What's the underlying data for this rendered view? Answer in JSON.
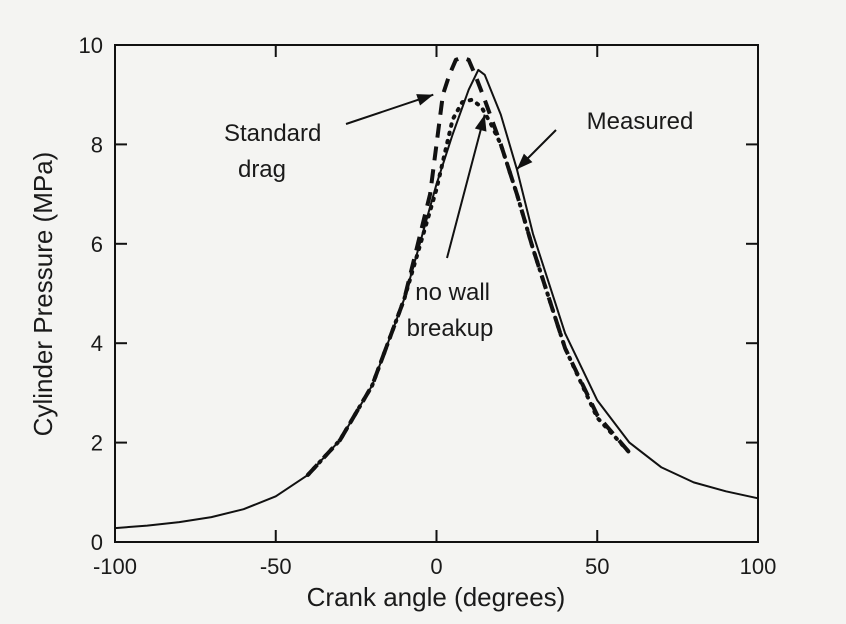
{
  "chart_data": {
    "type": "line",
    "xlabel": "Crank angle (degrees)",
    "ylabel": "Cylinder Pressure (MPa)",
    "xlim": [
      -100,
      100
    ],
    "ylim": [
      0,
      10
    ],
    "xticks": [
      -100,
      -50,
      0,
      50,
      100
    ],
    "yticks": [
      0,
      2,
      4,
      6,
      8,
      10
    ],
    "xtick_labels": [
      "-100",
      "-50",
      "0",
      "50",
      "100"
    ],
    "ytick_labels": [
      "0",
      "2",
      "4",
      "6",
      "8",
      "10"
    ],
    "grid": false,
    "series": [
      {
        "name": "Measured",
        "style": "solid",
        "x": [
          -100,
          -90,
          -80,
          -70,
          -60,
          -50,
          -40,
          -30,
          -20,
          -10,
          0,
          5,
          10,
          13,
          15,
          20,
          25,
          30,
          40,
          50,
          60,
          70,
          80,
          90,
          100
        ],
        "y": [
          0.28,
          0.33,
          0.4,
          0.5,
          0.66,
          0.92,
          1.35,
          2.05,
          3.15,
          4.9,
          7.2,
          8.2,
          9.1,
          9.5,
          9.4,
          8.6,
          7.5,
          6.2,
          4.2,
          2.85,
          2.0,
          1.5,
          1.2,
          1.02,
          0.88
        ]
      },
      {
        "name": "Standard drag",
        "style": "dash",
        "x": [
          -40,
          -30,
          -20,
          -10,
          -2,
          2,
          4,
          6,
          8,
          10,
          12,
          15,
          20,
          25,
          30,
          40,
          50,
          60
        ],
        "y": [
          1.35,
          2.05,
          3.15,
          4.9,
          7.0,
          9.0,
          9.4,
          9.7,
          9.75,
          9.7,
          9.4,
          8.9,
          8.0,
          7.0,
          5.9,
          3.9,
          2.55,
          1.8
        ]
      },
      {
        "name": "no wall breakup",
        "style": "dot",
        "x": [
          -40,
          -30,
          -20,
          -10,
          0,
          5,
          8,
          11,
          14,
          17,
          20,
          25,
          30,
          40,
          50,
          60
        ],
        "y": [
          1.35,
          2.05,
          3.15,
          4.9,
          7.1,
          8.5,
          8.85,
          8.9,
          8.75,
          8.4,
          8.0,
          7.0,
          5.9,
          3.9,
          2.5,
          1.8
        ]
      }
    ],
    "annotations": [
      {
        "lines": [
          "Standard",
          "drag"
        ],
        "points_to": {
          "x": -1,
          "y": 9.0
        }
      },
      {
        "lines": [
          "Measured"
        ],
        "points_to": {
          "x": 25,
          "y": 7.5
        }
      },
      {
        "lines": [
          "no wall",
          "breakup"
        ],
        "points_to": {
          "x": 15,
          "y": 8.6
        }
      }
    ]
  }
}
